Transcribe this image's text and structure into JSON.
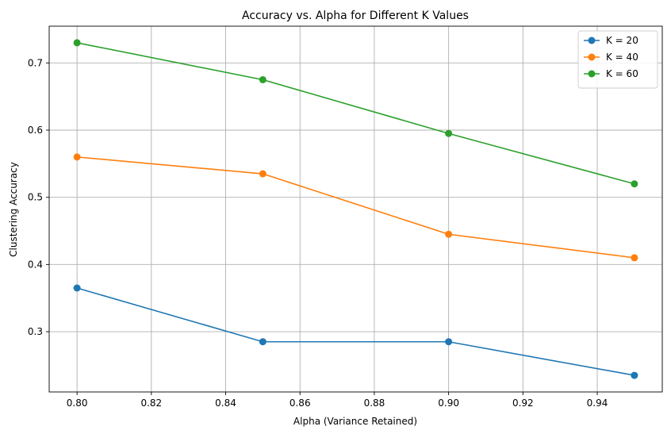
{
  "chart_data": {
    "type": "line",
    "title": "Accuracy vs. Alpha for Different K Values",
    "xlabel": "Alpha (Variance Retained)",
    "ylabel": "Clustering Accuracy",
    "x": [
      0.8,
      0.85,
      0.9,
      0.95
    ],
    "xlim": [
      0.7925,
      0.9575
    ],
    "ylim": [
      0.2103,
      0.7547
    ],
    "xticks": [
      0.8,
      0.82,
      0.84,
      0.86,
      0.88,
      0.9,
      0.92,
      0.94
    ],
    "xtick_labels": [
      "0.80",
      "0.82",
      "0.84",
      "0.86",
      "0.88",
      "0.90",
      "0.92",
      "0.94"
    ],
    "yticks": [
      0.3,
      0.4,
      0.5,
      0.6,
      0.7
    ],
    "ytick_labels": [
      "0.3",
      "0.4",
      "0.5",
      "0.6",
      "0.7"
    ],
    "grid": true,
    "legend_position": "top-right",
    "series": [
      {
        "name": "K = 20",
        "color": "#1f77b4",
        "values": [
          0.365,
          0.285,
          0.285,
          0.235
        ]
      },
      {
        "name": "K = 40",
        "color": "#ff7f0e",
        "values": [
          0.56,
          0.535,
          0.445,
          0.41
        ]
      },
      {
        "name": "K = 60",
        "color": "#2ca02c",
        "values": [
          0.73,
          0.675,
          0.595,
          0.52
        ]
      }
    ]
  }
}
